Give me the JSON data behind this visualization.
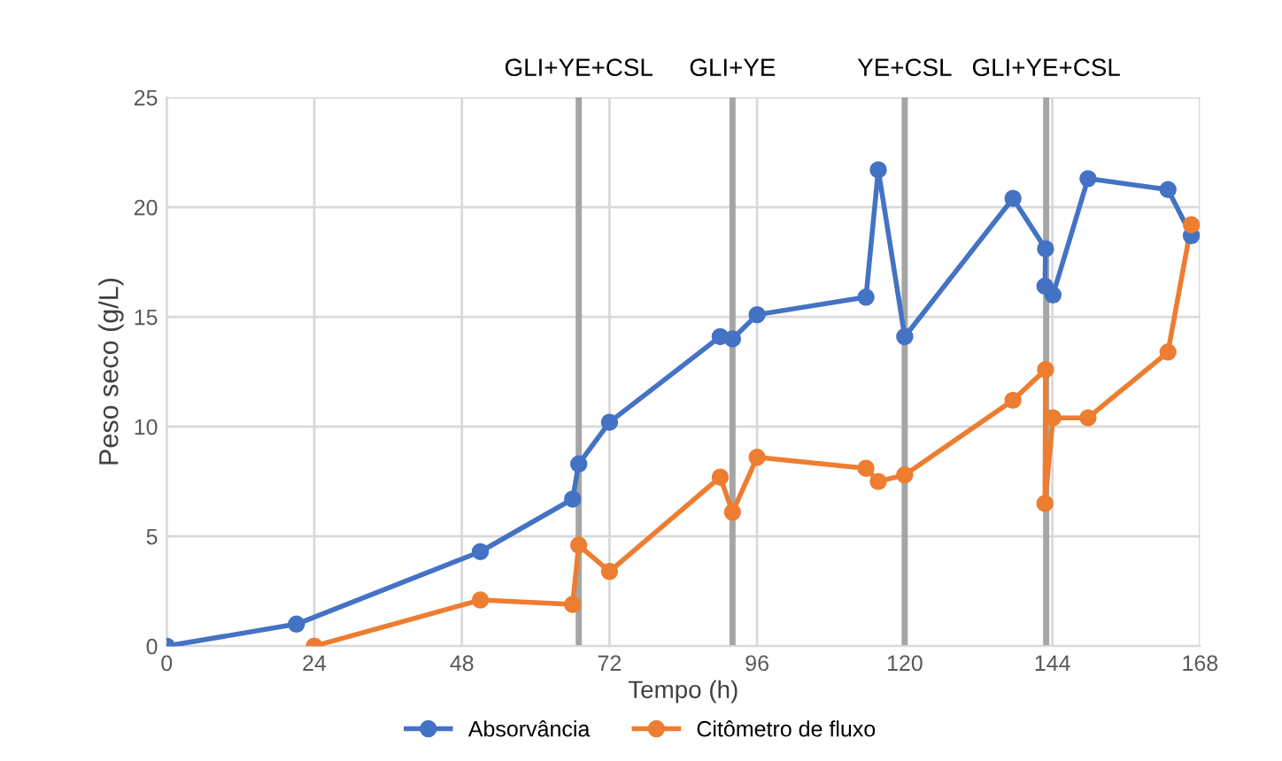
{
  "chart_data": {
    "type": "line",
    "xlabel": "Tempo (h)",
    "ylabel": "Peso seco (g/L)",
    "series": [
      {
        "name": "Absorvância",
        "color": "#4472c4",
        "x": [
          0,
          21.1,
          51,
          66,
          67,
          72,
          90,
          92,
          96,
          113.7,
          115.7,
          120,
          137.6,
          142.9,
          142.8,
          144.1,
          149.8,
          162.8,
          166.6
        ],
        "values": [
          0,
          1.0,
          4.3,
          6.7,
          8.3,
          10.2,
          14.1,
          14.0,
          15.1,
          15.9,
          21.7,
          14.1,
          20.4,
          18.1,
          16.4,
          16.0,
          21.3,
          20.8,
          18.7
        ]
      },
      {
        "name": "Citômetro de fluxo",
        "color": "#ed7d31",
        "x": [
          24,
          51,
          66,
          67,
          72,
          90,
          92,
          96,
          113.7,
          115.7,
          120,
          137.6,
          142.9,
          142.8,
          144.1,
          149.8,
          162.8,
          166.6
        ],
        "values": [
          0,
          2.1,
          1.9,
          4.6,
          3.4,
          7.7,
          6.1,
          8.6,
          8.1,
          7.5,
          7.8,
          11.2,
          12.6,
          6.5,
          10.4,
          10.4,
          13.4,
          19.2
        ]
      }
    ],
    "xlim": [
      0,
      168
    ],
    "xticks": [
      0,
      24,
      48,
      72,
      96,
      120,
      144,
      168
    ],
    "ylim": [
      0,
      25
    ],
    "yticks": [
      0,
      5,
      10,
      15,
      20,
      25
    ],
    "ref_lines": [
      {
        "axis": "x",
        "value": 67,
        "label": "GLI+YE+CSL",
        "color": "#a5a5a5"
      },
      {
        "axis": "x",
        "value": 92,
        "label": "GLI+YE",
        "color": "#a5a5a5"
      },
      {
        "axis": "x",
        "value": 120,
        "label": "YE+CSL",
        "color": "#a5a5a5"
      },
      {
        "axis": "x",
        "value": 143,
        "label": "GLI+YE+CSL",
        "color": "#a5a5a5"
      }
    ],
    "grid": true,
    "legend": "bottom",
    "marker": "circle",
    "line_style": "solid"
  }
}
